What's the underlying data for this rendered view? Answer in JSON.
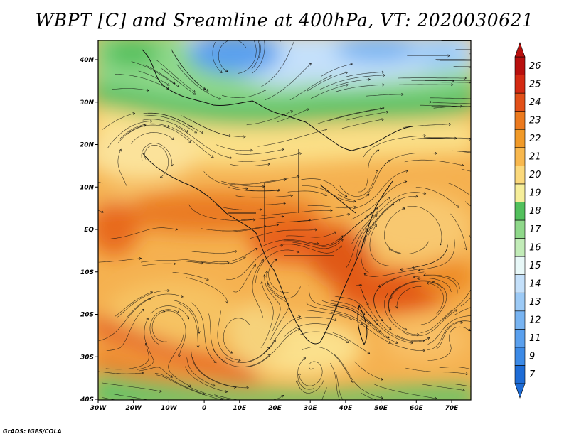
{
  "title": "WBPT [C] and Sreamline at 400hPa, VT: 2020030621",
  "credit": "GrADS: IGES/COLA",
  "map": {
    "lon_ticks": [
      "30W",
      "20W",
      "10W",
      "0",
      "10E",
      "20E",
      "30E",
      "40E",
      "50E",
      "60E",
      "70E"
    ],
    "lat_ticks": [
      "40N",
      "30N",
      "20N",
      "10N",
      "EQ",
      "10S",
      "20S",
      "30S",
      "40S"
    ]
  },
  "colorbar": {
    "labels": [
      "7",
      "9",
      "11",
      "12",
      "13",
      "14",
      "15",
      "16",
      "17",
      "18",
      "19",
      "20",
      "21",
      "22",
      "23",
      "24",
      "25",
      "26"
    ],
    "colors": [
      "#1e6cd6",
      "#3c8ae6",
      "#5aa0ee",
      "#78b4f2",
      "#9ccaf6",
      "#c4e0fa",
      "#e8f8f8",
      "#c2ecb8",
      "#8fd88a",
      "#52c05c",
      "#f6ee9a",
      "#fbd97c",
      "#f8b84e",
      "#f19a28",
      "#ec7a1e",
      "#e25018",
      "#d42a12",
      "#b8100e"
    ],
    "ends": {
      "low": "#1e6cd6",
      "high": "#b8100e"
    }
  }
}
